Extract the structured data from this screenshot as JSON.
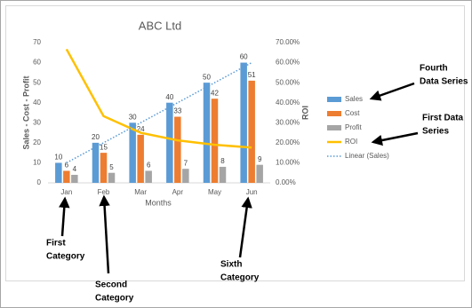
{
  "chart_data": {
    "type": "combo",
    "title": "ABC Ltd",
    "x_label": "Months",
    "y_label": "Sales - Cost - Profit",
    "y2_label": "ROI",
    "categories": [
      "Jan",
      "Feb",
      "Mar",
      "Apr",
      "May",
      "Jun"
    ],
    "series": [
      {
        "name": "Sales",
        "kind": "bar",
        "color": "#5b9bd5",
        "values": [
          10,
          20,
          30,
          40,
          50,
          60
        ]
      },
      {
        "name": "Cost",
        "kind": "bar",
        "color": "#ed7d31",
        "values": [
          6,
          15,
          24,
          33,
          42,
          51
        ]
      },
      {
        "name": "Profit",
        "kind": "bar",
        "color": "#a5a5a5",
        "values": [
          4,
          5,
          6,
          7,
          8,
          9
        ]
      },
      {
        "name": "ROI",
        "kind": "line",
        "axis": "y2",
        "color": "#ffc000",
        "values": [
          66.7,
          33.3,
          25,
          21.2,
          19,
          17.6
        ]
      },
      {
        "name": "Linear (Sales)",
        "kind": "trendline",
        "color": "#5b9bd5",
        "values": [
          10,
          20,
          30,
          40,
          50,
          60
        ]
      }
    ],
    "data_labels": true,
    "ylim": [
      0,
      70
    ],
    "yticks": [
      0,
      10,
      20,
      30,
      40,
      50,
      60,
      70
    ],
    "y2lim": [
      0,
      70
    ],
    "y2ticks": [
      {
        "value": 0,
        "label": "0.00%"
      },
      {
        "value": 10,
        "label": "10.00%"
      },
      {
        "value": 20,
        "label": "20.00%"
      },
      {
        "value": 30,
        "label": "30.00%"
      },
      {
        "value": 40,
        "label": "40.00%"
      },
      {
        "value": 50,
        "label": "50.00%"
      },
      {
        "value": 60,
        "label": "60.00%"
      },
      {
        "value": 70,
        "label": "70.00%"
      }
    ],
    "grid": false,
    "legend": "right",
    "annotations": [
      {
        "lines": [
          "Fourth",
          "Data Series"
        ]
      },
      {
        "lines": [
          "First Data",
          "Series"
        ]
      },
      {
        "lines": [
          "First",
          "Category"
        ]
      },
      {
        "lines": [
          "Second",
          "Category"
        ]
      },
      {
        "lines": [
          "Sixth",
          "Category"
        ]
      }
    ]
  }
}
